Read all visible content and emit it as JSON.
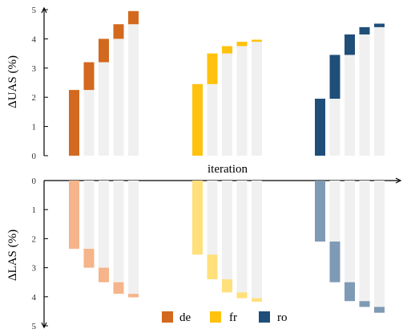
{
  "chart_data": {
    "type": "bar",
    "subtype": "waterfall",
    "xlabel": "iteration",
    "groups": [
      "de",
      "fr",
      "ro"
    ],
    "colors": {
      "de": "#d2691e",
      "fr": "#ffc20e",
      "ro": "#1f4e79",
      "de_light": "#f5b48a",
      "fr_light": "#ffe07a",
      "ro_light": "#7f9ab5",
      "background_bar": "#f0f0f0"
    },
    "panels": [
      {
        "name": "top",
        "ylabel": "ΔUAS (%)",
        "ylim": [
          0,
          5
        ],
        "yticks": [
          "0",
          "1",
          "2",
          "3",
          "4",
          "5"
        ],
        "direction": "up",
        "series": [
          {
            "name": "de",
            "increments": [
              2.25,
              0.95,
              0.8,
              0.5,
              0.45
            ]
          },
          {
            "name": "fr",
            "increments": [
              2.45,
              1.05,
              0.25,
              0.15,
              0.07
            ]
          },
          {
            "name": "ro",
            "increments": [
              1.95,
              1.5,
              0.7,
              0.25,
              0.12
            ]
          }
        ]
      },
      {
        "name": "bottom",
        "ylabel": "ΔLAS (%)",
        "ylim": [
          0,
          5
        ],
        "yticks": [
          "0",
          "1",
          "2",
          "3",
          "4",
          "5"
        ],
        "direction": "down",
        "series": [
          {
            "name": "de",
            "increments": [
              2.35,
              0.65,
              0.5,
              0.4,
              0.12
            ]
          },
          {
            "name": "fr",
            "increments": [
              2.55,
              0.85,
              0.45,
              0.2,
              0.12
            ]
          },
          {
            "name": "ro",
            "increments": [
              2.1,
              1.4,
              0.65,
              0.2,
              0.2
            ]
          }
        ]
      }
    ],
    "legend": {
      "position": "bottom-center",
      "items": [
        {
          "name": "de",
          "label": "de"
        },
        {
          "name": "fr",
          "label": "fr"
        },
        {
          "name": "ro",
          "label": "ro"
        }
      ]
    }
  }
}
